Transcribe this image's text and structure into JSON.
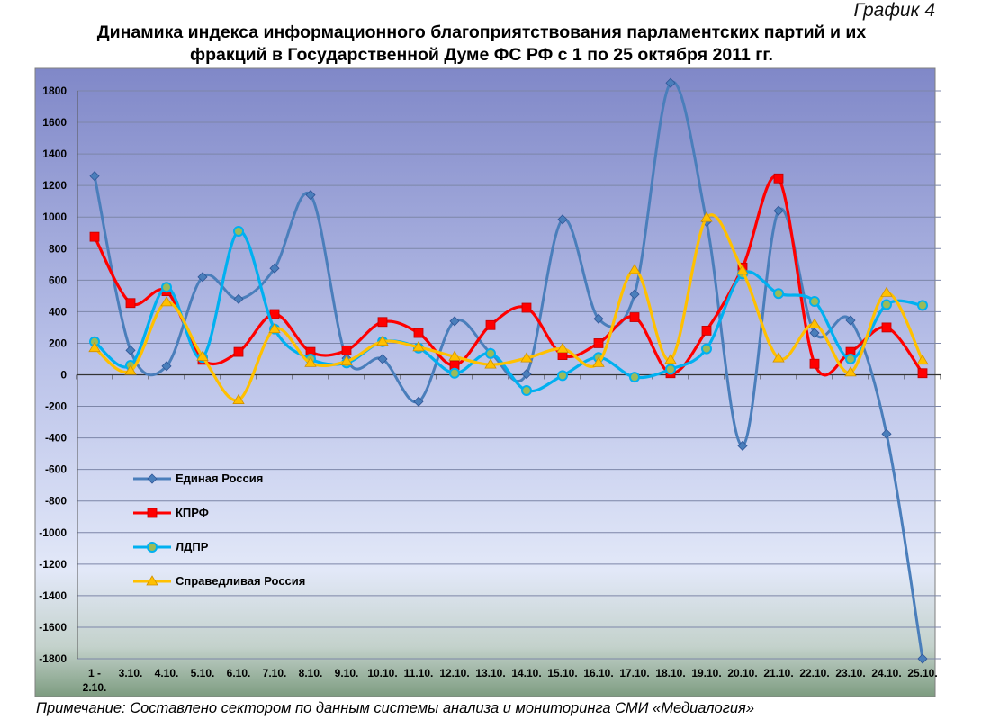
{
  "header": {
    "graph_number": "График 4",
    "title_line1": "Динамика индекса информационного благоприятствования парламентских партий и их",
    "title_line2": "фракций в Государственной Думе ФС РФ с 1 по 25 октября 2011 гг."
  },
  "footer": {
    "note": "Примечание: Составлено сектором по данным системы анализа и мониторинга СМИ «Медиалогия»"
  },
  "chart_data": {
    "type": "line",
    "title": "Динамика индекса информационного благоприятствования парламентских партий и их фракций в Государственной Думе ФС РФ с 1 по 25 октября 2011 гг.",
    "categories": [
      "1 - 2.10.",
      "3.10.",
      "4.10.",
      "5.10.",
      "6.10.",
      "7.10.",
      "8.10.",
      "9.10.",
      "10.10.",
      "11.10.",
      "12.10.",
      "13.10.",
      "14.10.",
      "15.10.",
      "16.10.",
      "17.10.",
      "18.10.",
      "19.10.",
      "20.10.",
      "21.10.",
      "22.10.",
      "23.10.",
      "24.10.",
      "25.10."
    ],
    "ylim": [
      -1800,
      1800
    ],
    "yticks": [
      1800,
      1600,
      1400,
      1200,
      1000,
      800,
      600,
      400,
      200,
      0,
      -200,
      -400,
      -600,
      -800,
      -1000,
      -1200,
      -1400,
      -1600,
      -1800
    ],
    "grid": true,
    "legend_position": "left-center",
    "series": [
      {
        "name": "Единая Россия",
        "color": "#4a7ebb",
        "marker": "diamond",
        "values": [
          1260,
          155,
          55,
          620,
          480,
          675,
          1140,
          105,
          100,
          -170,
          340,
          140,
          5,
          985,
          355,
          510,
          1850,
          970,
          -450,
          1040,
          265,
          345,
          -375,
          -1800
        ]
      },
      {
        "name": "КПРФ",
        "color": "#ff0000",
        "marker": "square",
        "values": [
          875,
          455,
          530,
          95,
          145,
          385,
          145,
          155,
          335,
          265,
          60,
          315,
          425,
          125,
          200,
          365,
          10,
          280,
          680,
          1245,
          70,
          145,
          300,
          10
        ]
      },
      {
        "name": "ЛДПР",
        "color": "#00b0f0",
        "marker": "circle",
        "values": [
          210,
          60,
          555,
          110,
          910,
          290,
          100,
          75,
          210,
          170,
          10,
          135,
          -100,
          -5,
          110,
          -15,
          35,
          165,
          640,
          515,
          465,
          100,
          445,
          440
        ]
      },
      {
        "name": "Справедливая Россия",
        "color": "#ffc000",
        "marker": "triangle",
        "values": [
          170,
          25,
          460,
          115,
          -160,
          290,
          75,
          85,
          210,
          175,
          115,
          65,
          105,
          165,
          75,
          665,
          95,
          995,
          660,
          105,
          320,
          15,
          520,
          90
        ]
      }
    ]
  }
}
